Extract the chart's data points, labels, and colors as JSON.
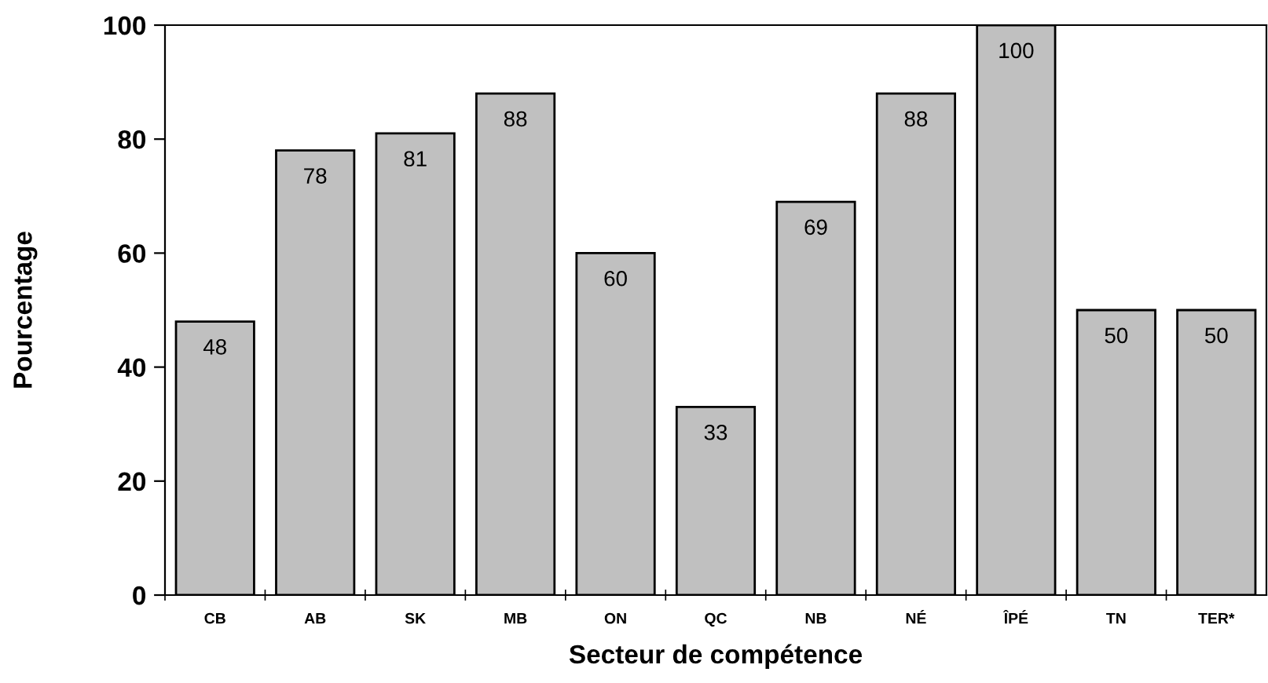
{
  "chart_data": {
    "type": "bar",
    "xlabel": "Secteur de compétence",
    "ylabel": "Pourcentage",
    "categories": [
      "CB",
      "AB",
      "SK",
      "MB",
      "ON",
      "QC",
      "NB",
      "NÉ",
      "ÎPÉ",
      "TN",
      "TER*"
    ],
    "values": [
      48,
      78,
      81,
      88,
      60,
      33,
      69,
      88,
      100,
      50,
      50
    ],
    "color": "#c0c0c0",
    "ylim": [
      0,
      100
    ],
    "yticks": [
      0,
      20,
      40,
      60,
      80,
      100
    ],
    "grid": false,
    "data_labels": true
  }
}
